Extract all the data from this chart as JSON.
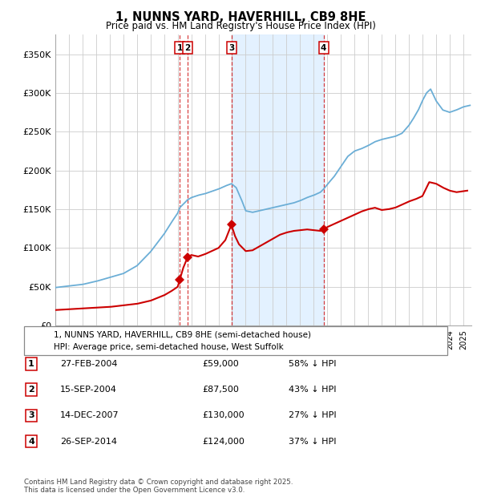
{
  "title": "1, NUNNS YARD, HAVERHILL, CB9 8HE",
  "subtitle": "Price paid vs. HM Land Registry's House Price Index (HPI)",
  "background_color": "#ffffff",
  "plot_bg_color": "#ffffff",
  "grid_color": "#cccccc",
  "hpi_color": "#6baed6",
  "price_color": "#cc0000",
  "transactions": [
    {
      "num": 1,
      "date_x": 2004.15,
      "price": 59000,
      "label": "1",
      "date_str": "27-FEB-2004",
      "price_str": "£59,000",
      "pct": "58% ↓ HPI"
    },
    {
      "num": 2,
      "date_x": 2004.71,
      "price": 87500,
      "label": "2",
      "date_str": "15-SEP-2004",
      "price_str": "£87,500",
      "pct": "43% ↓ HPI"
    },
    {
      "num": 3,
      "date_x": 2007.95,
      "price": 130000,
      "label": "3",
      "date_str": "14-DEC-2007",
      "price_str": "£130,000",
      "pct": "27% ↓ HPI"
    },
    {
      "num": 4,
      "date_x": 2014.73,
      "price": 124000,
      "label": "4",
      "date_str": "26-SEP-2014",
      "price_str": "£124,000",
      "pct": "37% ↓ HPI"
    }
  ],
  "shade_start": 2007.95,
  "shade_end": 2014.73,
  "ylim": [
    0,
    375000
  ],
  "yticks": [
    0,
    50000,
    100000,
    150000,
    200000,
    250000,
    300000,
    350000
  ],
  "xlim_start": 1995,
  "xlim_end": 2025.6,
  "footer_line1": "Contains HM Land Registry data © Crown copyright and database right 2025.",
  "footer_line2": "This data is licensed under the Open Government Licence v3.0.",
  "legend_entry1": "1, NUNNS YARD, HAVERHILL, CB9 8HE (semi-detached house)",
  "legend_entry2": "HPI: Average price, semi-detached house, West Suffolk",
  "hpi_anchors_x": [
    1995.0,
    1996.0,
    1997.0,
    1998.0,
    1999.0,
    2000.0,
    2001.0,
    2002.0,
    2003.0,
    2003.5,
    2004.0,
    2004.15,
    2004.5,
    2004.71,
    2005.0,
    2005.5,
    2006.0,
    2006.5,
    2007.0,
    2007.5,
    2007.95,
    2008.3,
    2008.7,
    2009.0,
    2009.5,
    2010.0,
    2010.5,
    2011.0,
    2011.5,
    2012.0,
    2012.5,
    2013.0,
    2013.5,
    2014.0,
    2014.5,
    2014.73,
    2015.0,
    2015.5,
    2016.0,
    2016.5,
    2017.0,
    2017.5,
    2018.0,
    2018.5,
    2019.0,
    2019.5,
    2020.0,
    2020.5,
    2021.0,
    2021.3,
    2021.7,
    2022.0,
    2022.3,
    2022.6,
    2023.0,
    2023.5,
    2024.0,
    2024.5,
    2025.0,
    2025.5
  ],
  "hpi_anchors_y": [
    49000,
    51000,
    53000,
    57000,
    62000,
    67000,
    77000,
    95000,
    118000,
    132000,
    145000,
    152000,
    158000,
    162000,
    165000,
    168000,
    170000,
    173000,
    176000,
    180000,
    183000,
    178000,
    162000,
    148000,
    146000,
    148000,
    150000,
    152000,
    154000,
    156000,
    158000,
    161000,
    165000,
    168000,
    172000,
    176000,
    182000,
    192000,
    205000,
    218000,
    225000,
    228000,
    232000,
    237000,
    240000,
    242000,
    244000,
    248000,
    258000,
    266000,
    278000,
    290000,
    300000,
    305000,
    290000,
    278000,
    275000,
    278000,
    282000,
    284000
  ],
  "price_anchors_x": [
    1995.0,
    1996.0,
    1997.0,
    1998.0,
    1999.0,
    2000.0,
    2001.0,
    2002.0,
    2003.0,
    2003.5,
    2004.0,
    2004.15,
    2004.4,
    2004.71,
    2005.0,
    2005.5,
    2006.0,
    2006.5,
    2007.0,
    2007.5,
    2007.95,
    2008.2,
    2008.5,
    2009.0,
    2009.5,
    2010.0,
    2010.5,
    2011.0,
    2011.5,
    2012.0,
    2012.5,
    2013.0,
    2013.5,
    2014.0,
    2014.5,
    2014.73,
    2015.0,
    2015.5,
    2016.0,
    2016.5,
    2017.0,
    2017.5,
    2018.0,
    2018.5,
    2019.0,
    2019.5,
    2020.0,
    2020.5,
    2021.0,
    2021.5,
    2022.0,
    2022.5,
    2023.0,
    2023.5,
    2024.0,
    2024.5,
    2025.3
  ],
  "price_anchors_y": [
    20000,
    21000,
    22000,
    23000,
    24000,
    26000,
    28000,
    32000,
    39000,
    44000,
    50000,
    59000,
    74000,
    87500,
    91000,
    89000,
    92000,
    96000,
    100000,
    110000,
    130000,
    116000,
    105000,
    96000,
    97000,
    102000,
    107000,
    112000,
    117000,
    120000,
    122000,
    123000,
    124000,
    123000,
    122000,
    124000,
    127000,
    131000,
    135000,
    139000,
    143000,
    147000,
    150000,
    152000,
    149000,
    150000,
    152000,
    156000,
    160000,
    163000,
    167000,
    185000,
    183000,
    178000,
    174000,
    172000,
    174000
  ]
}
